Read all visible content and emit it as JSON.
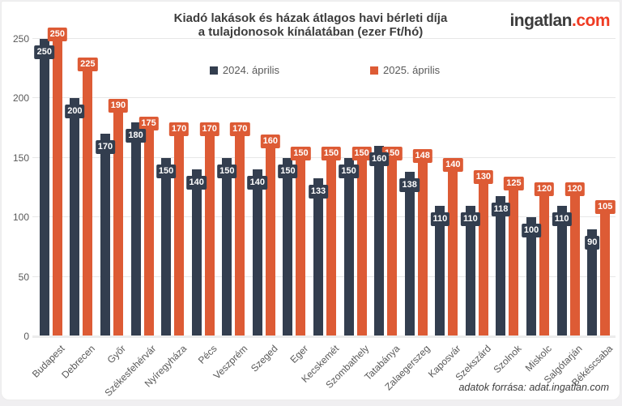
{
  "header": {
    "title_line1": "Kiadó lakások és házak átlagos havi bérleti díja",
    "title_line2": "a tulajdonosok kínálatában (ezer Ft/hó)",
    "logo_main": "ingatlan",
    "logo_suffix": ".com"
  },
  "colors": {
    "series_2024": "#333e4f",
    "series_2025": "#dd5b35",
    "logo_suffix": "#ef3b23",
    "grid": "#e7e7e7",
    "axis_text": "#595959"
  },
  "chart_data": {
    "type": "bar",
    "title": "Kiadó lakások és házak átlagos havi bérleti díja a tulajdonosok kínálatában (ezer Ft/hó)",
    "categories": [
      "Budapest",
      "Debrecen",
      "Győr",
      "Székesfehérvár",
      "Nyíregyháza",
      "Pécs",
      "Veszprém",
      "Szeged",
      "Eger",
      "Kecskemét",
      "Szombathely",
      "Tatabánya",
      "Zalaegerszeg",
      "Kaposvár",
      "Szekszárd",
      "Szolnok",
      "Miskolc",
      "Salgótarján",
      "Békéscsaba"
    ],
    "series": [
      {
        "name": "2024. április",
        "color": "#333e4f",
        "values": [
          250,
          200,
          170,
          180,
          150,
          140,
          150,
          140,
          150,
          133,
          150,
          160,
          138,
          110,
          110,
          118,
          100,
          110,
          90
        ]
      },
      {
        "name": "2025. április",
        "color": "#dd5b35",
        "values": [
          250,
          225,
          190,
          175,
          170,
          170,
          170,
          160,
          150,
          150,
          150,
          150,
          148,
          140,
          130,
          125,
          120,
          120,
          105
        ]
      }
    ],
    "xlabel": "",
    "ylabel": "",
    "ylim": [
      0,
      250
    ],
    "yticks": [
      0,
      50,
      100,
      150,
      200,
      250
    ],
    "grid": true,
    "legend_position": "top-center",
    "value_labels": true
  },
  "footer": {
    "source": "adatok forrása: adat.ingatlan.com"
  }
}
